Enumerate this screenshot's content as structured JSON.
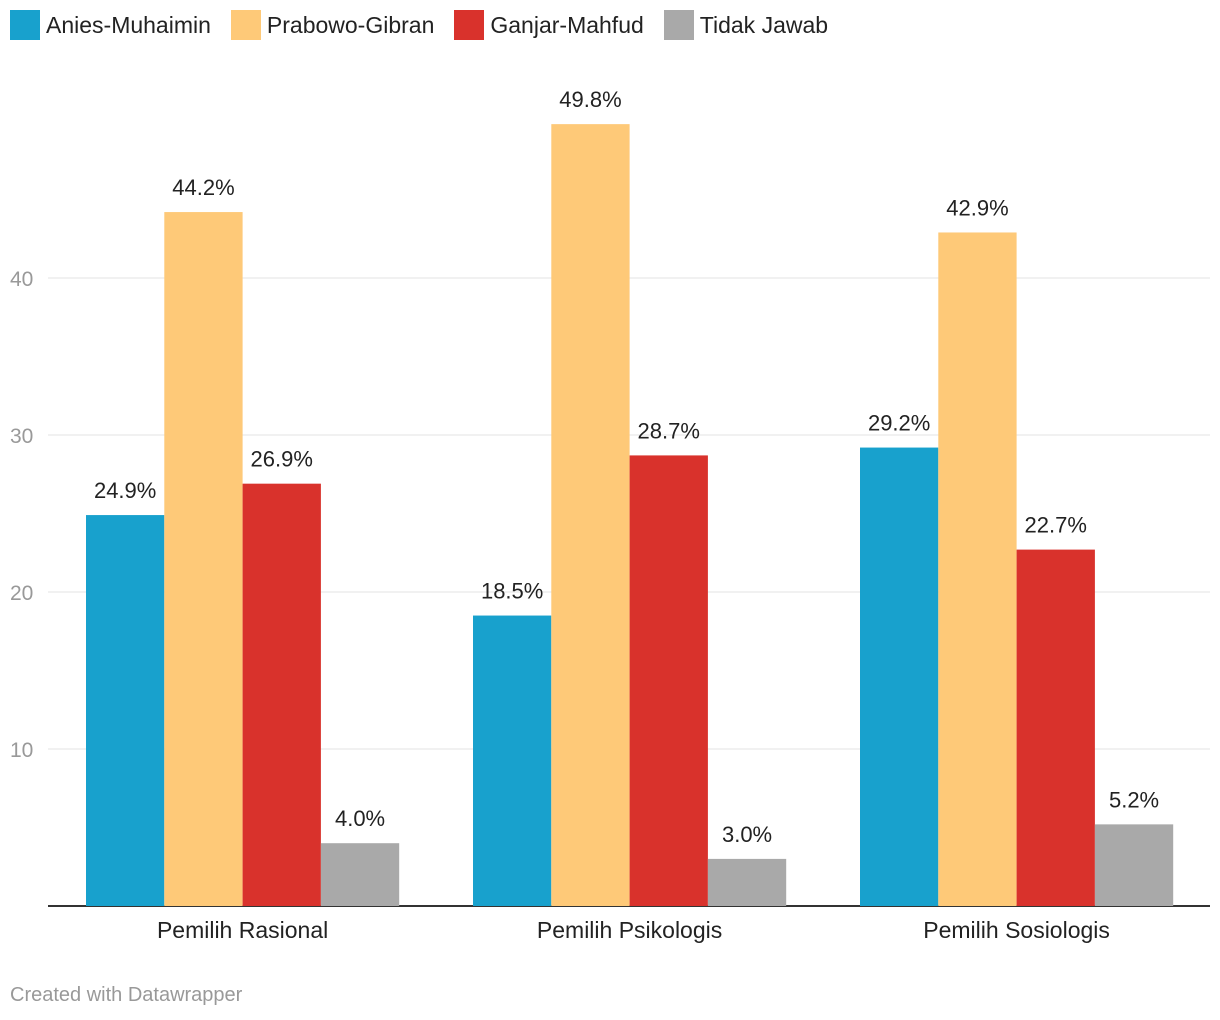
{
  "chart_data": {
    "type": "bar",
    "categories": [
      "Pemilih Rasional",
      "Pemilih Psikologis",
      "Pemilih Sosiologis"
    ],
    "series": [
      {
        "name": "Anies-Muhaimin",
        "color": "#18a1cd",
        "values": [
          24.9,
          18.5,
          29.2
        ],
        "labels": [
          "24.9%",
          "18.5%",
          "29.2%"
        ]
      },
      {
        "name": "Prabowo-Gibran",
        "color": "#fec978",
        "values": [
          44.2,
          49.8,
          42.9
        ],
        "labels": [
          "44.2%",
          "49.8%",
          "42.9%"
        ]
      },
      {
        "name": "Ganjar-Mahfud",
        "color": "#d9322c",
        "values": [
          26.9,
          28.7,
          22.7
        ],
        "labels": [
          "26.9%",
          "28.7%",
          "22.7%"
        ]
      },
      {
        "name": "Tidak Jawab",
        "color": "#a9a9a9",
        "values": [
          4.0,
          3.0,
          5.2
        ],
        "labels": [
          "4.0%",
          "3.0%",
          "5.2%"
        ]
      }
    ],
    "yticks": [
      10,
      20,
      30,
      40
    ],
    "ylim": [
      0,
      50
    ],
    "grid": true,
    "legend_position": "top-left",
    "title": "",
    "xlabel": "",
    "ylabel": ""
  },
  "footer": {
    "credit": "Created with Datawrapper"
  }
}
